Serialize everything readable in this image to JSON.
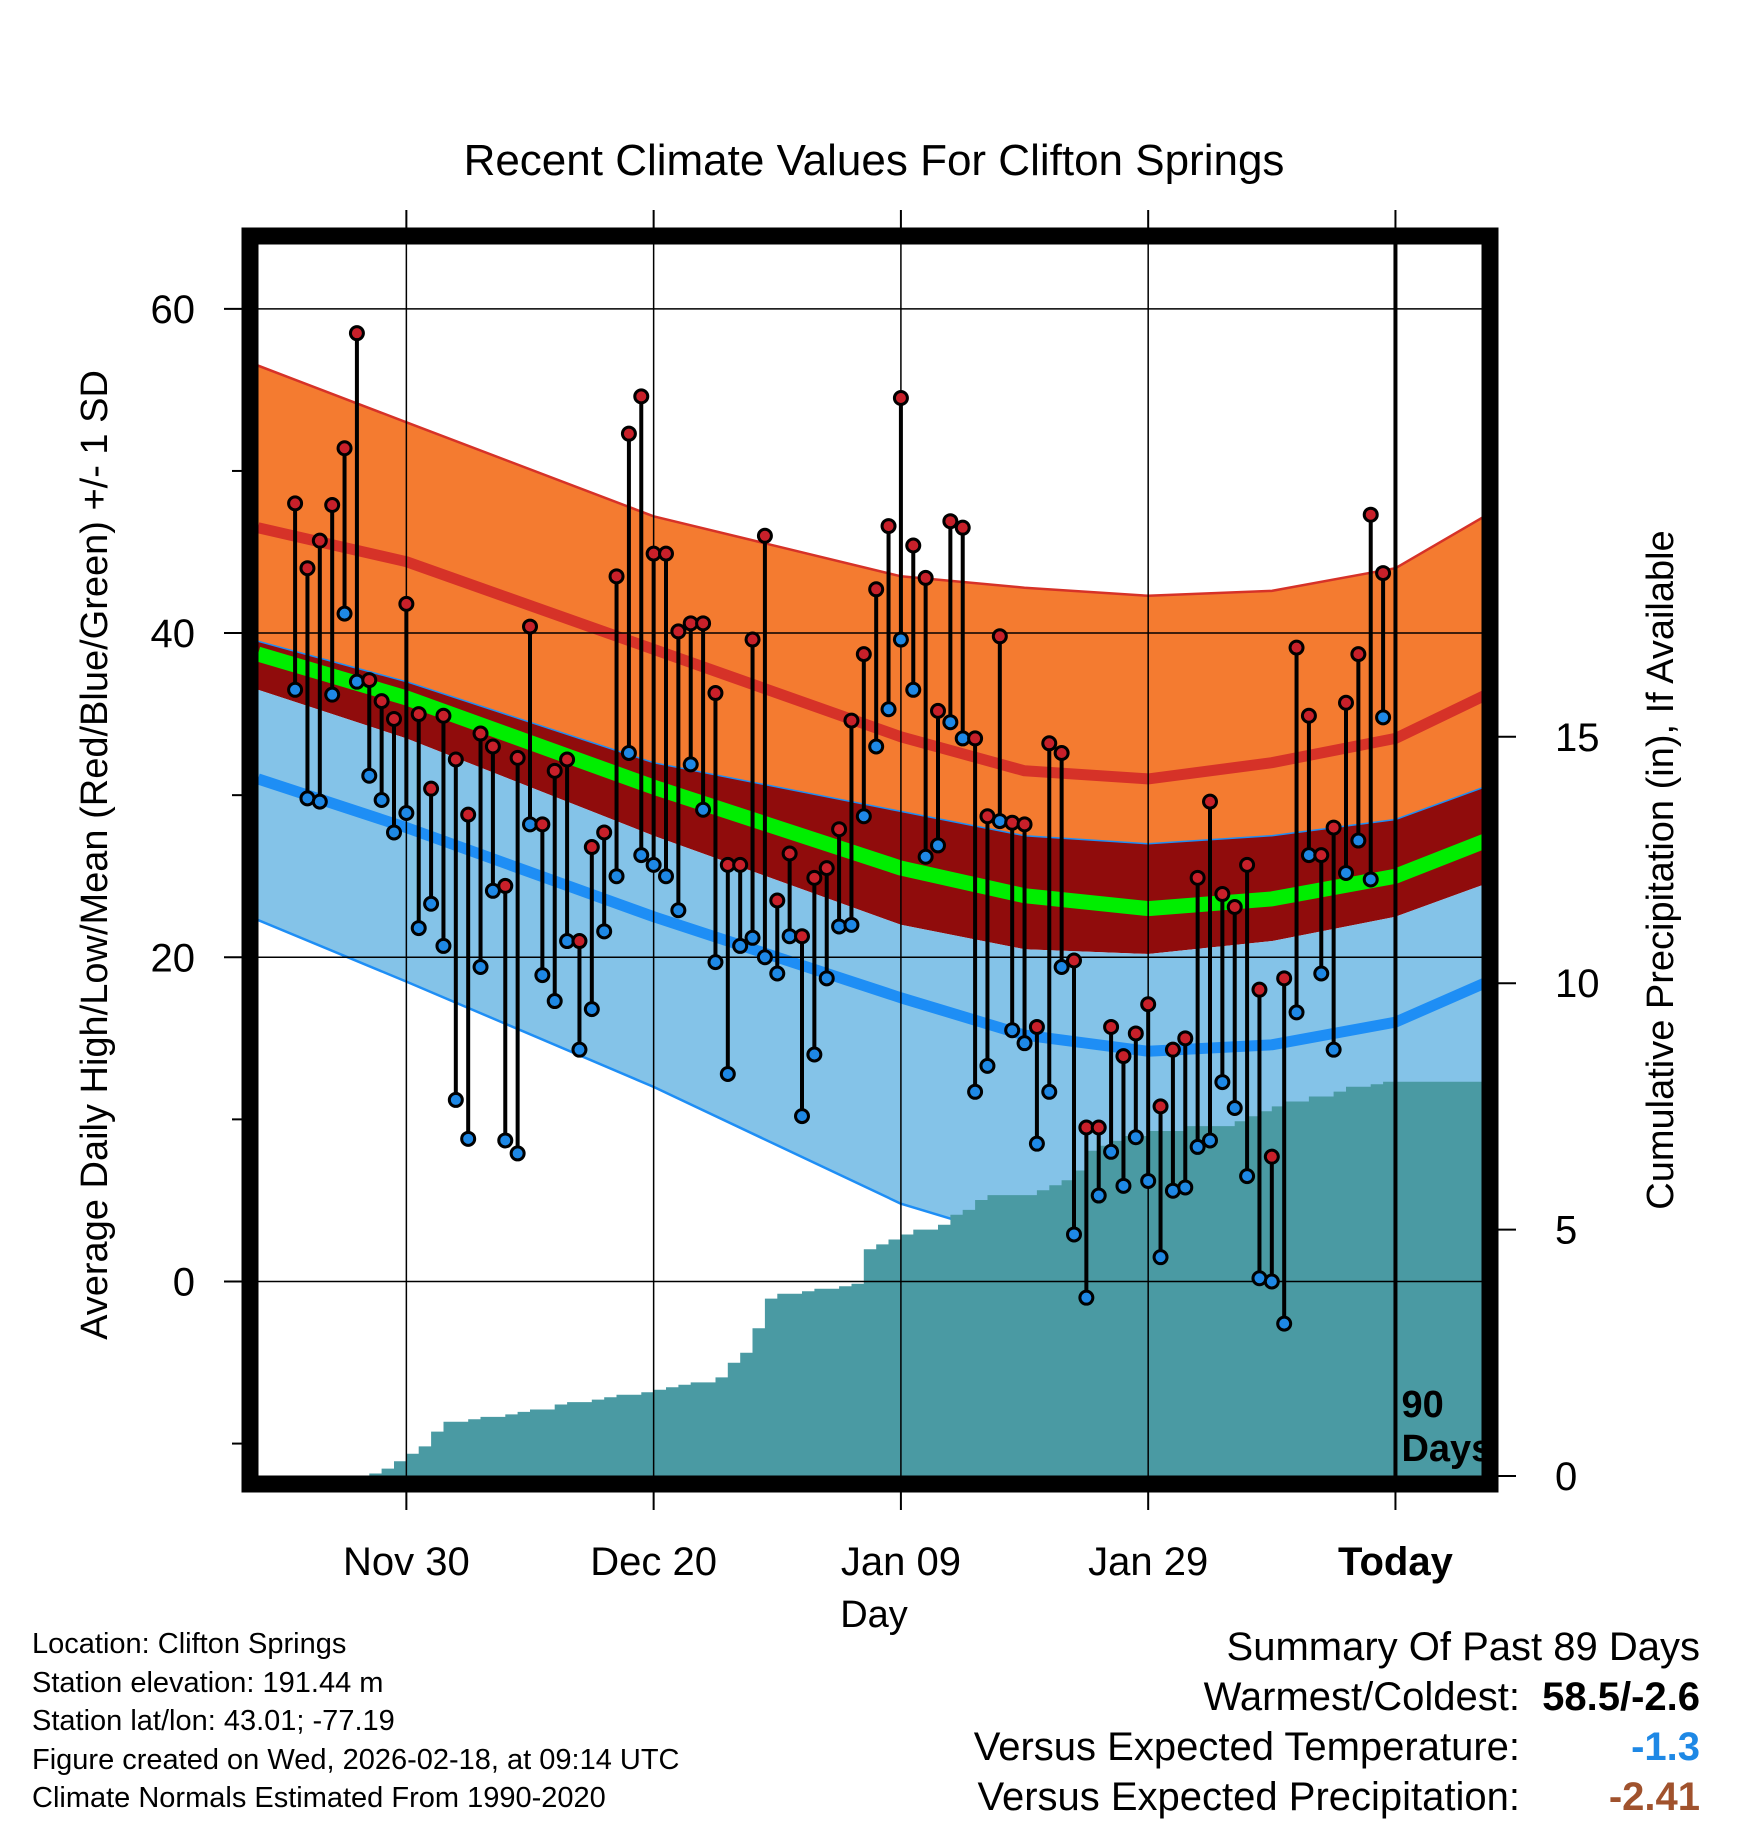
{
  "chart_data": {
    "type": "line",
    "title": "Recent Climate Values For Clifton Springs",
    "xlabel": "Day",
    "ylabel": "Average Daily High/Low/Mean (Red/Blue/Green) +/- 1 SD",
    "y2label": "Cumulative Precipitation (in), If Available",
    "x_day_range": [
      -92,
      7
    ],
    "ylim": [
      -12,
      64
    ],
    "y_ticks": [
      "60",
      "40",
      "20",
      "0"
    ],
    "y2_range": [
      0,
      25
    ],
    "y2_ticks": [
      "0",
      "5",
      "10",
      "15"
    ],
    "x_ticks": [
      {
        "label": "Nov 30",
        "day": -80
      },
      {
        "label": "Dec 20",
        "day": -60
      },
      {
        "label": "Jan 09",
        "day": -40
      },
      {
        "label": "Jan 29",
        "day": -20
      },
      {
        "label": "Today",
        "day": 0
      }
    ],
    "today_marker": {
      "label_line1": "90",
      "label_line2": "Days"
    },
    "normals": {
      "days": [
        -92,
        -80,
        -60,
        -40,
        -30,
        -20,
        -10,
        0,
        9
      ],
      "high_mean": [
        46.5,
        44.4,
        39.0,
        33.6,
        31.5,
        31.0,
        32.0,
        33.5,
        36.8
      ],
      "high_sd_upper": [
        56.5,
        53.0,
        47.2,
        43.5,
        42.8,
        42.3,
        42.6,
        44.0,
        48.0
      ],
      "low_mean": [
        31.0,
        28.0,
        22.5,
        17.5,
        15.2,
        14.2,
        14.6,
        16.0,
        19.0
      ],
      "low_sd_lower": [
        22.3,
        18.5,
        12.0,
        4.8,
        2.5,
        2.2,
        3.0,
        5.0,
        7.5
      ],
      "mean_mean": [
        38.7,
        36.0,
        30.5,
        25.5,
        23.8,
        23.0,
        23.6,
        25.0,
        27.7
      ],
      "mean_band_upper": [
        39.5,
        37.0,
        32.0,
        29.0,
        27.5,
        27.0,
        27.5,
        28.5,
        31.0
      ],
      "mean_band_lower": [
        36.5,
        33.5,
        27.5,
        22.0,
        20.5,
        20.2,
        21.0,
        22.5,
        25.0
      ]
    },
    "observed": {
      "days": [
        -89,
        -88,
        -87,
        -86,
        -85,
        -84,
        -83,
        -82,
        -81,
        -80,
        -79,
        -78,
        -77,
        -76,
        -75,
        -74,
        -73,
        -72,
        -71,
        -70,
        -69,
        -68,
        -67,
        -66,
        -65,
        -64,
        -63,
        -62,
        -61,
        -60,
        -59,
        -58,
        -57,
        -56,
        -55,
        -54,
        -53,
        -52,
        -51,
        -50,
        -49,
        -48,
        -47,
        -46,
        -45,
        -44,
        -43,
        -42,
        -41,
        -40,
        -39,
        -38,
        -37,
        -36,
        -35,
        -34,
        -33,
        -32,
        -31,
        -30,
        -29,
        -28,
        -27,
        -26,
        -25,
        -24,
        -23,
        -22,
        -21,
        -20,
        -19,
        -18,
        -17,
        -16,
        -15,
        -14,
        -13,
        -12,
        -11,
        -10,
        -9,
        -8,
        -7,
        -6,
        -5,
        -4,
        -3,
        -2,
        -1
      ],
      "high": [
        48.0,
        44.0,
        45.7,
        47.9,
        51.4,
        58.5,
        37.1,
        35.8,
        34.7,
        41.8,
        35.0,
        30.4,
        34.9,
        32.2,
        28.8,
        33.8,
        33.0,
        24.4,
        32.3,
        40.4,
        28.2,
        31.5,
        32.2,
        21.0,
        26.8,
        27.7,
        43.5,
        52.3,
        54.6,
        44.9,
        44.9,
        40.1,
        40.6,
        40.6,
        36.3,
        25.7,
        25.7,
        39.6,
        46.0,
        23.5,
        26.4,
        21.3,
        24.9,
        25.5,
        27.9,
        34.6,
        38.7,
        42.7,
        46.6,
        54.5,
        45.4,
        43.4,
        35.2,
        46.9,
        46.5,
        33.5,
        28.7,
        39.8,
        28.3,
        28.2,
        15.7,
        33.2,
        32.6,
        19.8,
        9.5,
        9.5,
        15.7,
        13.9,
        15.3,
        17.1,
        10.8,
        14.3,
        15.0,
        24.9,
        29.6,
        23.9,
        23.1,
        25.7,
        18.0,
        7.7,
        18.7,
        39.1,
        34.9,
        26.3,
        28.0,
        35.7,
        38.7,
        47.3,
        43.7
      ],
      "low": [
        36.5,
        29.8,
        29.6,
        36.2,
        41.2,
        37.0,
        31.2,
        29.7,
        27.7,
        28.9,
        21.8,
        23.3,
        20.7,
        11.2,
        8.8,
        19.4,
        24.1,
        8.7,
        7.9,
        28.2,
        18.9,
        17.3,
        21.0,
        14.3,
        16.8,
        21.6,
        25.0,
        32.6,
        26.3,
        25.7,
        25.0,
        22.9,
        31.9,
        29.1,
        19.7,
        12.8,
        20.7,
        21.2,
        20.0,
        19.0,
        21.3,
        10.2,
        14.0,
        18.7,
        21.9,
        22.0,
        28.7,
        33.0,
        35.3,
        39.6,
        36.5,
        26.2,
        26.9,
        34.5,
        33.5,
        11.7,
        13.3,
        28.4,
        15.5,
        14.7,
        8.5,
        11.7,
        19.4,
        2.9,
        -1.0,
        5.3,
        8.0,
        5.9,
        8.9,
        6.2,
        1.5,
        5.6,
        5.8,
        8.3,
        8.7,
        12.3,
        10.7,
        6.5,
        0.2,
        0.0,
        -2.6,
        16.6,
        26.3,
        19.0,
        14.3,
        25.2,
        27.2,
        24.8,
        34.8
      ]
    },
    "precip": {
      "days": [
        -92,
        -84,
        -83,
        -82,
        -81,
        -80,
        -79,
        -78,
        -77,
        -76,
        -75,
        -74,
        -73,
        -72,
        -71,
        -70,
        -69,
        -68,
        -67,
        -66,
        -65,
        -64,
        -63,
        -62,
        -61,
        -60,
        -59,
        -58,
        -57,
        -56,
        -55,
        -54,
        -53,
        -52,
        -51,
        -50,
        -49,
        -48,
        -47,
        -46,
        -45,
        -44,
        -43,
        -42,
        -41,
        -40,
        -39,
        -38,
        -37,
        -36,
        -35,
        -34,
        -33,
        -32,
        -31,
        -30,
        -29,
        -28,
        -27,
        -26,
        -25,
        -24,
        -23,
        -22,
        -21,
        -20,
        -19,
        -18,
        -17,
        -16,
        -15,
        -14,
        -13,
        -12,
        -11,
        -10,
        -9,
        -8,
        -7,
        -6,
        -5,
        -4,
        -3,
        -2,
        -1,
        0,
        9
      ],
      "values": [
        0,
        0,
        0.05,
        0.15,
        0.3,
        0.45,
        0.6,
        0.9,
        1.1,
        1.1,
        1.15,
        1.2,
        1.2,
        1.25,
        1.3,
        1.35,
        1.35,
        1.45,
        1.5,
        1.5,
        1.55,
        1.6,
        1.65,
        1.65,
        1.7,
        1.75,
        1.8,
        1.85,
        1.9,
        1.9,
        2.0,
        2.3,
        2.5,
        3.0,
        3.6,
        3.7,
        3.7,
        3.75,
        3.8,
        3.8,
        3.85,
        3.9,
        4.6,
        4.7,
        4.8,
        4.9,
        5.0,
        5.0,
        5.1,
        5.3,
        5.4,
        5.6,
        5.7,
        5.7,
        5.7,
        5.7,
        5.8,
        5.9,
        6.0,
        6.2,
        6.6,
        6.7,
        6.8,
        6.9,
        6.9,
        7.0,
        7.0,
        7.0,
        7.1,
        7.1,
        7.1,
        7.1,
        7.2,
        7.3,
        7.4,
        7.5,
        7.6,
        7.6,
        7.7,
        7.7,
        7.8,
        7.9,
        7.9,
        7.95,
        8.0,
        8.0,
        8.0
      ]
    }
  },
  "info": {
    "location": "Location: Clifton Springs",
    "elevation": "Station elevation: 191.44 m",
    "latlon": "Station lat/lon: 43.01; -77.19",
    "created": "Figure created on Wed, 2026-02-18, at 09:14 UTC",
    "normals": "Climate Normals Estimated From 1990-2020"
  },
  "summary": {
    "heading": "Summary Of Past 89 Days",
    "warmest_coldest_label": "Warmest/Coldest:",
    "warmest_coldest_value": "58.5/-2.6",
    "temp_label": "Versus Expected Temperature:",
    "temp_value": "-1.3",
    "precip_label": "Versus Expected Precipitation:",
    "precip_value": "-2.41"
  },
  "colors": {
    "high_band": "#f47b30",
    "high_line": "#d63228",
    "mean_band": "#900c0c",
    "mean_line": "#00ee00",
    "low_band": "#84c3e8",
    "low_line": "#1e8ef5",
    "precip": "#4a9aa3",
    "high_dot": "#c8202a",
    "low_dot": "#1e88e5",
    "temp_value": "#1e88e5",
    "precip_value": "#a0522d"
  }
}
